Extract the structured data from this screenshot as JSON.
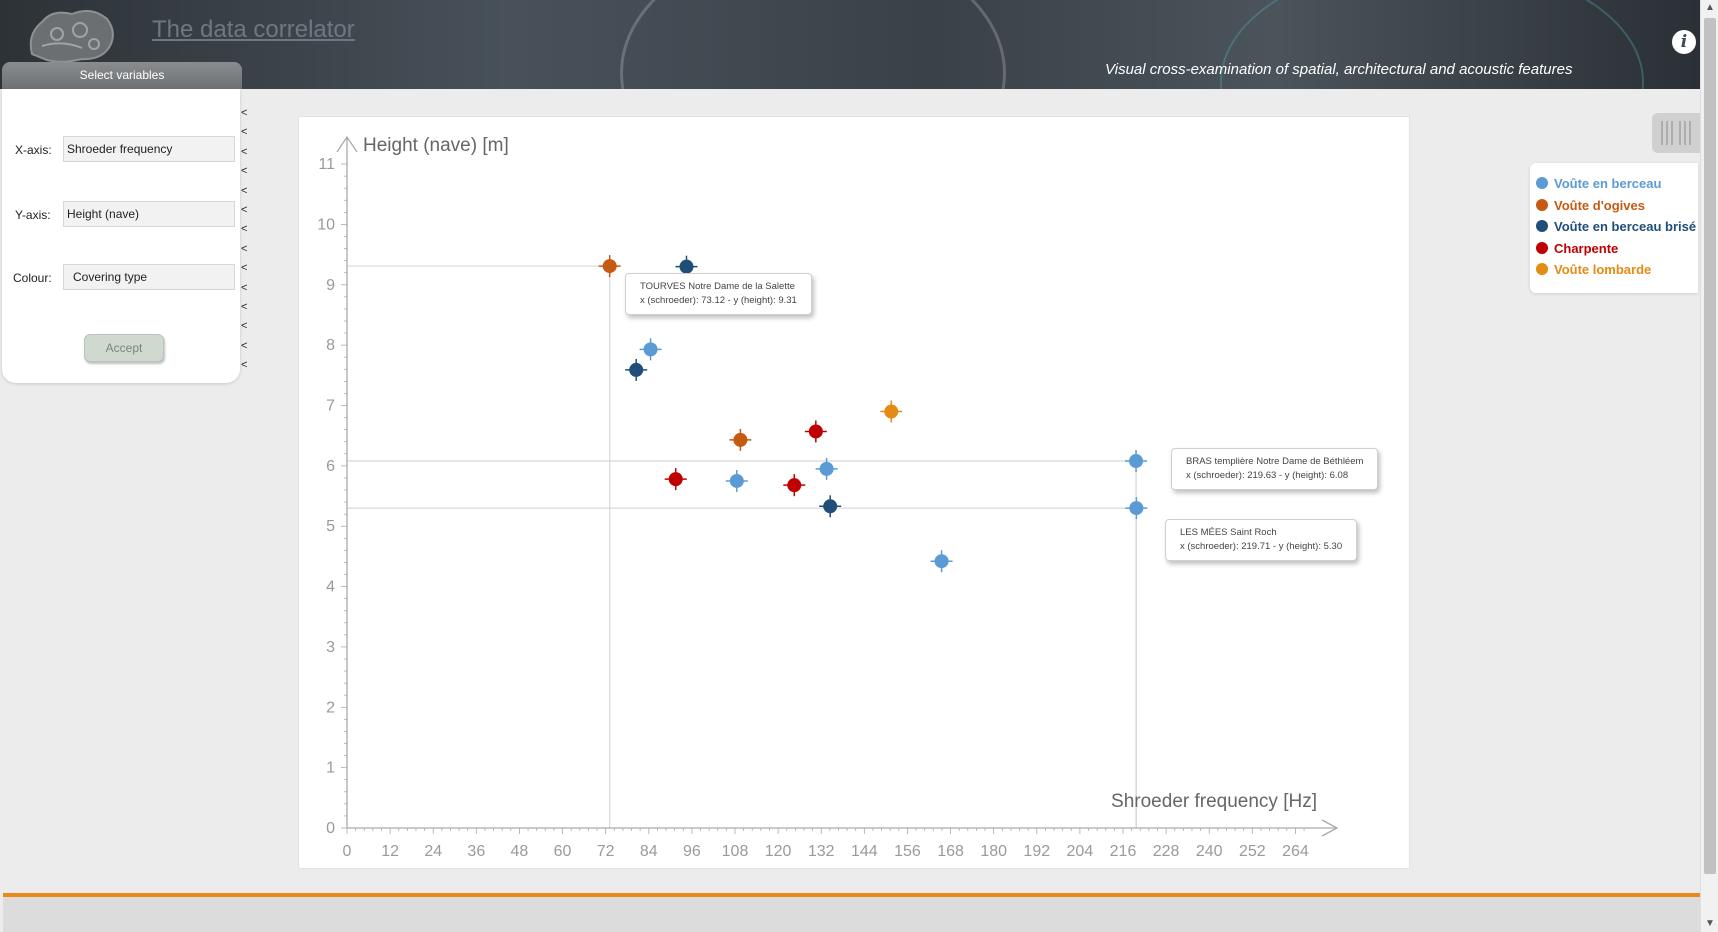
{
  "header": {
    "title": "The data correlator",
    "subtitle": "Visual cross-examination of spatial, architectural and acoustic features",
    "info_icon": "i"
  },
  "panel": {
    "title": "Select variables",
    "x_label": "X-axis:",
    "x_value": "Shroeder frequency",
    "y_label": "Y-axis:",
    "y_value": "Height (nave)",
    "colour_label": "Colour:",
    "colour_value": "Covering type",
    "accept_label": "Accept",
    "collapse_glyph": "<"
  },
  "legend": {
    "items": [
      {
        "label": "Voûte en berceau",
        "color": "#5b9bd5"
      },
      {
        "label": "Voûte d'ogives",
        "color": "#c55a11"
      },
      {
        "label": "Voûte en berceau brisé",
        "color": "#1f4e79"
      },
      {
        "label": "Charpente",
        "color": "#c00000"
      },
      {
        "label": "Voûte lombarde",
        "color": "#e58a12"
      }
    ]
  },
  "tooltips": [
    {
      "name": "TOURVES Notre Dame de la Salette",
      "detail": "x (schroeder): 73.12 - y (height): 9.31"
    },
    {
      "name": "BRAS templière Notre Dame de Béthléem",
      "detail": "x (schroeder): 219.63 - y (height): 6.08"
    },
    {
      "name": "LES MÉES Saint Roch",
      "detail": "x (schroeder): 219.71 - y (height): 5.30"
    }
  ],
  "chart_data": {
    "type": "scatter",
    "xlabel": "Shroeder frequency [Hz]",
    "ylabel": "Height (nave) [m]",
    "xlim": [
      0,
      270
    ],
    "ylim": [
      0,
      11.2
    ],
    "xticks": [
      0,
      12,
      24,
      36,
      48,
      60,
      72,
      84,
      96,
      108,
      120,
      132,
      144,
      156,
      168,
      180,
      192,
      204,
      216,
      228,
      240,
      252,
      264
    ],
    "yticks": [
      0,
      1,
      2,
      3,
      4,
      5,
      6,
      7,
      8,
      9,
      10,
      11
    ],
    "series": [
      {
        "name": "Voûte en berceau",
        "color": "#5b9bd5",
        "points": [
          [
            84.5,
            7.93
          ],
          [
            108.5,
            5.75
          ],
          [
            133.5,
            5.95
          ],
          [
            165.5,
            4.42
          ],
          [
            219.63,
            6.08
          ],
          [
            219.71,
            5.3
          ]
        ]
      },
      {
        "name": "Voûte d'ogives",
        "color": "#c55a11",
        "points": [
          [
            73.12,
            9.31
          ],
          [
            109.5,
            6.43
          ]
        ]
      },
      {
        "name": "Voûte en berceau brisé",
        "color": "#1f4e79",
        "points": [
          [
            94.5,
            9.3
          ],
          [
            80.5,
            7.59
          ],
          [
            134.5,
            5.33
          ]
        ]
      },
      {
        "name": "Charpente",
        "color": "#c00000",
        "points": [
          [
            91.5,
            5.78
          ],
          [
            124.5,
            5.68
          ],
          [
            130.5,
            6.57
          ]
        ]
      },
      {
        "name": "Voûte lombarde",
        "color": "#e58a12",
        "points": [
          [
            151.5,
            6.9
          ]
        ]
      }
    ],
    "highlighted": [
      [
        73.12,
        9.31
      ],
      [
        219.63,
        6.08
      ],
      [
        219.71,
        5.3
      ]
    ],
    "grid": false
  }
}
